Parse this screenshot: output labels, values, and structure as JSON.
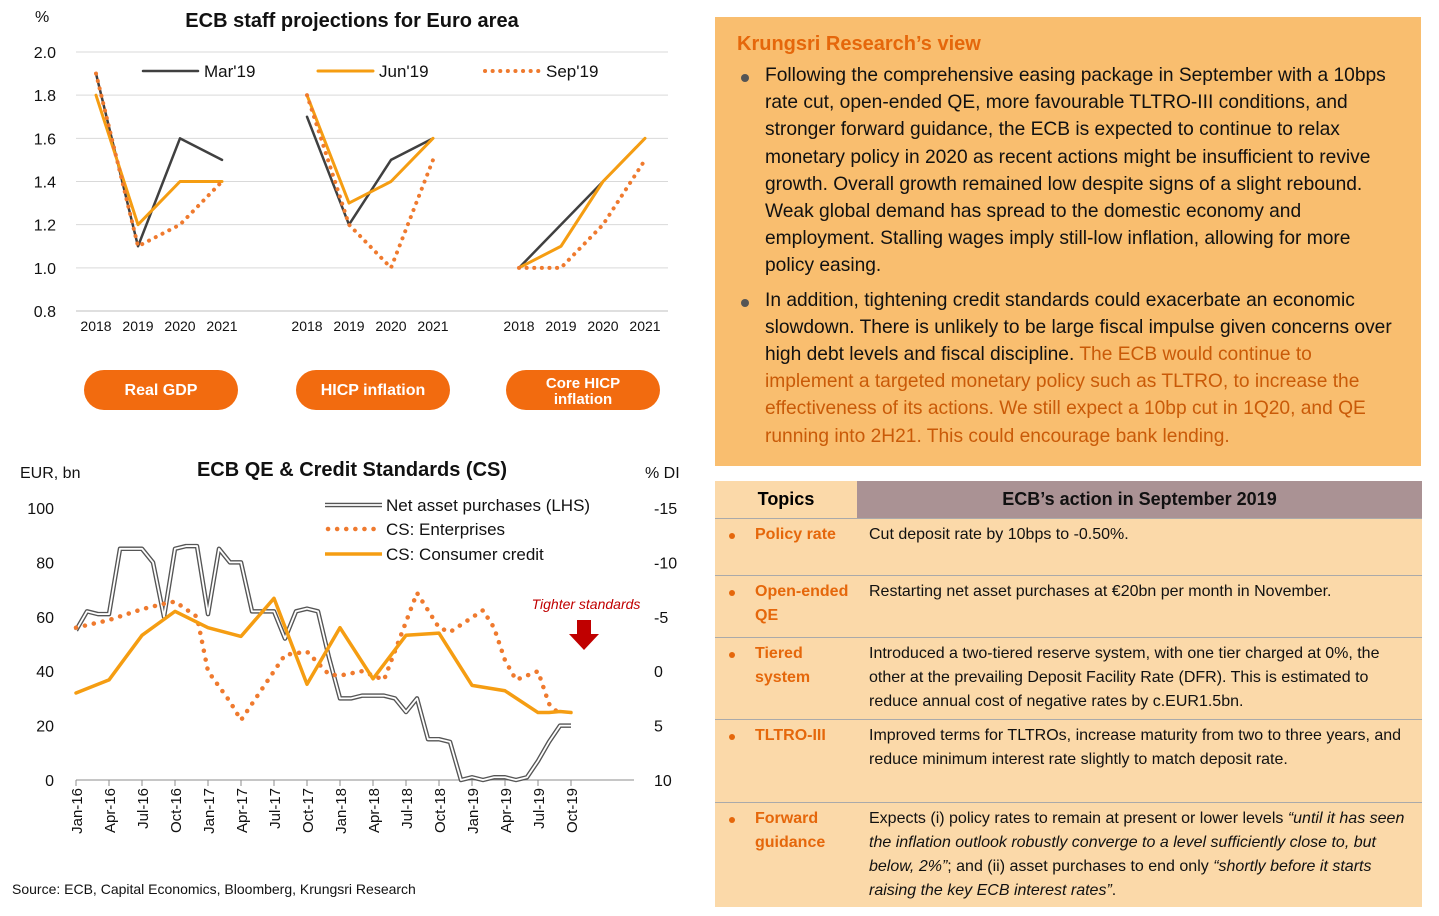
{
  "chart_top": {
    "title": "ECB staff projections for Euro area",
    "ylabel": "%",
    "ylim": [
      0.8,
      2.0
    ],
    "yticks": [
      "2.0",
      "1.8",
      "1.6",
      "1.4",
      "1.2",
      "1.0",
      "0.8"
    ],
    "years": [
      "2018",
      "2019",
      "2020",
      "2021"
    ],
    "legend": [
      "Mar'19",
      "Jun'19",
      "Sep'19"
    ],
    "colors": {
      "mar": "#404040",
      "jun": "#f59d12",
      "sep": "#ef7a2e",
      "button": "#f26b0f"
    },
    "panels": [
      {
        "label": "Real GDP",
        "mar": [
          1.9,
          1.1,
          1.6,
          1.5
        ],
        "jun": [
          1.8,
          1.2,
          1.4,
          1.4
        ],
        "sep": [
          1.9,
          1.1,
          1.2,
          1.4
        ]
      },
      {
        "label": "HICP inflation",
        "mar": [
          1.7,
          1.2,
          1.5,
          1.6
        ],
        "jun": [
          1.8,
          1.3,
          1.4,
          1.6
        ],
        "sep": [
          1.8,
          1.2,
          1.0,
          1.5
        ]
      },
      {
        "label": "Core HICP inflation",
        "mar": [
          1.0,
          1.2,
          1.4,
          1.6
        ],
        "jun": [
          1.0,
          1.1,
          1.4,
          1.6
        ],
        "sep": [
          1.0,
          1.0,
          1.2,
          1.5
        ]
      }
    ]
  },
  "chart_data": {
    "type": "line",
    "title": "ECB QE & Credit Standards (CS)",
    "ylabel_left": "EUR, bn",
    "ylabel_right": "% DI",
    "ylim_left": [
      0,
      100
    ],
    "ylim_right": [
      10,
      -15
    ],
    "yticks_left": [
      "100",
      "80",
      "60",
      "40",
      "20",
      "0"
    ],
    "yticks_right": [
      "-15",
      "-10",
      "-5",
      "0",
      "5",
      "10"
    ],
    "x_ticks": [
      "Jan-16",
      "Apr-16",
      "Jul-16",
      "Oct-16",
      "Jan-17",
      "Apr-17",
      "Jul-17",
      "Oct-17",
      "Jan-18",
      "Apr-18",
      "Jul-18",
      "Oct-18",
      "Jan-19",
      "Apr-19",
      "Jul-19",
      "Oct-19"
    ],
    "series": [
      {
        "name": "Net asset purchases (LHS)",
        "axis": "left",
        "color": "#555555",
        "values": [
          55,
          62,
          61,
          61,
          85,
          85,
          85,
          80,
          60,
          85,
          86,
          86,
          61,
          85,
          80,
          80,
          62,
          62,
          62,
          52,
          62,
          63,
          62,
          45,
          30,
          30,
          31,
          31,
          31,
          30,
          25,
          30,
          15,
          15,
          14,
          0,
          1,
          0,
          1,
          1,
          0,
          1,
          7,
          14,
          20,
          20
        ]
      },
      {
        "name": "CS: Enterprises",
        "axis": "right",
        "color": "#ef7a2e",
        "points": [
          [
            0,
            -4
          ],
          [
            3,
            -4.7
          ],
          [
            6,
            -5.7
          ],
          [
            8,
            -6.2
          ],
          [
            9,
            -6.4
          ],
          [
            11,
            -5
          ],
          [
            12,
            0
          ],
          [
            14,
            2.8
          ],
          [
            15,
            4.5
          ],
          [
            17,
            1.5
          ],
          [
            19,
            -1.5
          ],
          [
            21,
            -1.8
          ],
          [
            23,
            0.3
          ],
          [
            24,
            0.4
          ],
          [
            26,
            0
          ],
          [
            28,
            0.8
          ],
          [
            31,
            -7.2
          ],
          [
            33,
            -4
          ],
          [
            34,
            -3.6
          ],
          [
            37,
            -5.6
          ],
          [
            38,
            -4
          ],
          [
            39,
            -1
          ],
          [
            40,
            0.8
          ],
          [
            42,
            0
          ],
          [
            43,
            3
          ],
          [
            44,
            4
          ]
        ]
      },
      {
        "name": "CS: Consumer credit",
        "axis": "right",
        "color": "#f59d12",
        "points": [
          [
            0,
            2
          ],
          [
            3,
            0.8
          ],
          [
            6,
            -3.3
          ],
          [
            9,
            -5.5
          ],
          [
            12,
            -4
          ],
          [
            15,
            -3.2
          ],
          [
            18,
            -6.7
          ],
          [
            21,
            1.2
          ],
          [
            24,
            -4
          ],
          [
            27,
            0.7
          ],
          [
            30,
            -3.3
          ],
          [
            33,
            -3.5
          ],
          [
            36,
            1.3
          ],
          [
            39,
            1.8
          ],
          [
            42,
            3.8
          ],
          [
            43,
            3.8
          ],
          [
            44,
            3.7
          ],
          [
            45,
            3.8
          ]
        ]
      }
    ],
    "annotation": "Tighter standards"
  },
  "source": "Source: ECB, Capital Economics, Bloomberg, Krungsri Research",
  "view": {
    "heading": "Krungsri Research’s view",
    "para1": "Following the comprehensive easing package in September with a 10bps rate cut, open-ended QE, more favourable TLTRO-III conditions, and stronger forward guidance, the ECB is expected to continue to relax monetary policy in 2020 as recent actions might be insufficient to revive growth. Overall growth remained low despite signs of a slight rebound. Weak global demand has spread to the domestic economy and employment. Stalling wages imply still-low inflation, allowing for more policy easing.",
    "para2_plain": "In addition, tightening credit standards could exacerbate an economic slowdown. There is unlikely to be large fiscal impulse given concerns over high debt levels and fiscal discipline.",
    "para2_highlight": "The ECB would continue to implement a targeted monetary policy such as TLTRO, to increase the effectiveness of its actions. We still expect a 10bp cut in 1Q20, and QE running into 2H21. This could encourage bank lending."
  },
  "topics": {
    "header_topics": "Topics",
    "header_action": "ECB’s action in September 2019",
    "rows": [
      {
        "topic": "Policy rate",
        "action": "Cut deposit rate by 10bps to -0.50%."
      },
      {
        "topic": "Open-ended QE",
        "action": "Restarting net asset purchases at €20bn per month in November."
      },
      {
        "topic": "Tiered system",
        "action": "Introduced a two-tiered reserve system, with one tier charged at 0%, the other at the prevailing Deposit Facility Rate (DFR). This is estimated to reduce annual cost of negative rates by c.EUR1.5bn."
      },
      {
        "topic": "TLTRO-III",
        "action": "Improved terms for TLTROs, increase maturity from two to three years, and reduce minimum interest rate slightly to match deposit rate."
      }
    ],
    "fg_topic": "Forward guidance",
    "fg_1": "Expects (i) policy rates to remain at present or lower levels ",
    "fg_q1": "“until it has seen the inflation outlook robustly converge to a level sufficiently close to, but below, 2%”",
    "fg_2": "; and (ii) asset purchases to end only ",
    "fg_q2": "“shortly before it starts raising the key ECB interest rates”",
    "fg_3": "."
  }
}
